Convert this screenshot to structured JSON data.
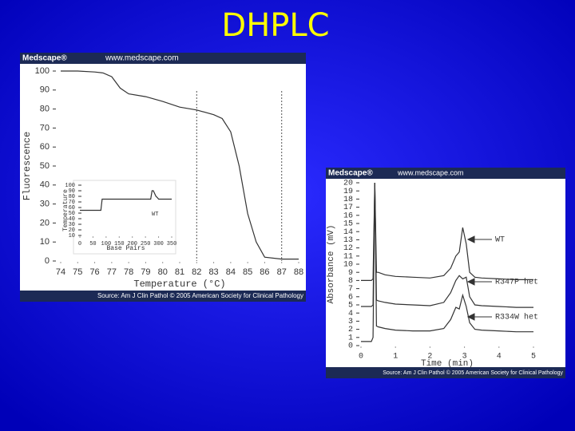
{
  "slide_title": "DHPLC",
  "panels": [
    {
      "header_logo": "Medscape®",
      "header_url": "www.medscape.com",
      "source": "Source: Am J Clin Pathol © 2005 American Society for Clinical Pathology"
    },
    {
      "header_logo": "Medscape®",
      "header_url": "www.medscape.com",
      "source": "Source: Am J Clin Pathol © 2005 American Society for Clinical Pathology"
    }
  ],
  "chart_data": [
    {
      "type": "line",
      "x_label": "Temperature (°C)",
      "y_label": "Fluorescence",
      "color": "#333333",
      "x": [
        74,
        75,
        76,
        76.5,
        77,
        77.5,
        78,
        79,
        80,
        81,
        82,
        83,
        83.5,
        84,
        84.5,
        85,
        85.5,
        86,
        87,
        88
      ],
      "values": [
        100,
        100,
        99.5,
        99,
        97,
        91,
        88,
        86.5,
        84,
        81,
        79.5,
        77,
        75,
        68,
        50,
        25,
        10,
        2,
        1,
        1
      ],
      "vlines": [
        82,
        87
      ],
      "xlim": [
        74,
        88
      ],
      "xticks": [
        74,
        75,
        76,
        77,
        78,
        79,
        80,
        81,
        82,
        83,
        84,
        85,
        86,
        87,
        88
      ],
      "ylim": [
        0,
        100
      ],
      "yticks": [
        0,
        10,
        20,
        30,
        40,
        50,
        60,
        70,
        80,
        90,
        100
      ]
    },
    {
      "type": "line",
      "x_label": "Base Pairs",
      "y_label": "Temperature",
      "annotation": "WT",
      "color": "#333333",
      "x": [
        0,
        80,
        85,
        270,
        275,
        280,
        290,
        295,
        300,
        350
      ],
      "values": [
        55,
        55,
        75,
        75,
        90,
        90,
        80,
        78,
        75,
        75
      ],
      "xlim": [
        0,
        350
      ],
      "xticks": [
        0,
        50,
        100,
        150,
        200,
        250,
        300,
        350
      ],
      "ylim": [
        10,
        100
      ],
      "yticks": [
        10,
        20,
        30,
        40,
        50,
        60,
        70,
        80,
        90,
        100
      ]
    },
    {
      "type": "line",
      "x_label": "Time (min)",
      "y_label": "Absorbance (mV)",
      "x": [
        0,
        0.3,
        0.35,
        0.4,
        0.45,
        0.5,
        0.7,
        1,
        1.5,
        2,
        2.4,
        2.6,
        2.75,
        2.85,
        2.95,
        3.05,
        3.15,
        3.3,
        3.5,
        4,
        4.5,
        5
      ],
      "series": [
        {
          "name": "WT",
          "color": "#333333",
          "values": [
            8,
            8,
            8.2,
            20,
            9,
            9,
            8.7,
            8.5,
            8.4,
            8.3,
            8.6,
            9.5,
            11,
            11.5,
            14.5,
            12.5,
            9,
            8.4,
            8.3,
            8.2,
            8.1,
            8.1
          ]
        },
        {
          "name": "R347P het",
          "color": "#333333",
          "values": [
            4.8,
            4.8,
            5,
            20,
            5.6,
            5.5,
            5.3,
            5.1,
            5,
            4.9,
            5.3,
            6.5,
            8,
            8.6,
            8.2,
            8.4,
            6,
            5,
            4.9,
            4.8,
            4.7,
            4.7
          ]
        },
        {
          "name": "R334W het",
          "color": "#333333",
          "values": [
            0.5,
            0.5,
            1,
            20,
            2.4,
            2.3,
            2.1,
            1.9,
            1.8,
            1.8,
            2.1,
            3.2,
            4.7,
            4.5,
            6.2,
            4.8,
            2.8,
            2,
            1.9,
            1.8,
            1.7,
            1.7
          ]
        }
      ],
      "xlim": [
        0,
        5
      ],
      "xticks": [
        0,
        1,
        2,
        3,
        4,
        5
      ],
      "ylim": [
        0,
        20
      ],
      "yticks": [
        0,
        1,
        2,
        3,
        4,
        5,
        6,
        7,
        8,
        9,
        10,
        11,
        12,
        13,
        14,
        15,
        16,
        17,
        18,
        19,
        20
      ]
    }
  ]
}
